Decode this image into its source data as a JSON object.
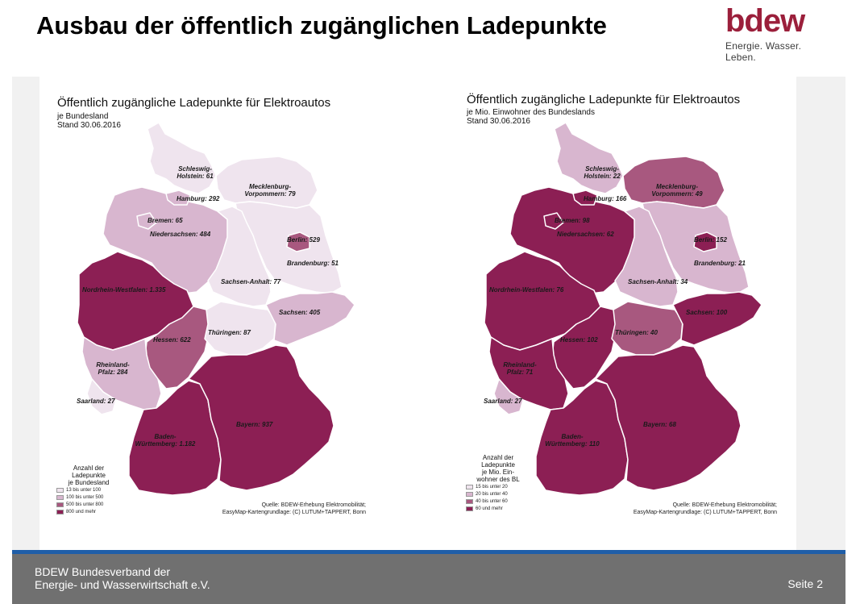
{
  "slide": {
    "title": "Ausbau der öffentlich zugänglichen Ladepunkte"
  },
  "logo": {
    "word": "bdew",
    "tagline": "Energie. Wasser. Leben."
  },
  "map_left": {
    "title": "Öffentlich zugängliche Ladepunkte für Elektroautos",
    "subtitle_line1": "je Bundesland",
    "subtitle_line2": "Stand 30.06.2016",
    "labels": {
      "sh": [
        "Schleswig-",
        "Holstein: 61"
      ],
      "mv": [
        "Mecklenburg-",
        "Vorpommern: 79"
      ],
      "hh": [
        "Hamburg: 292"
      ],
      "hb": [
        "Bremen: 65"
      ],
      "ni": [
        "Niedersachsen: 484"
      ],
      "be": [
        "Berlin: 529"
      ],
      "bb": [
        "Brandenburg: 51"
      ],
      "nw": [
        "Nordrhein-Westfalen: 1.335"
      ],
      "st": [
        "Sachsen-Anhalt: 77"
      ],
      "sn": [
        "Sachsen: 405"
      ],
      "he": [
        "Hessen: 622"
      ],
      "th": [
        "Thüringen: 87"
      ],
      "rp": [
        "Rheinland-",
        "Pfalz: 284"
      ],
      "sl": [
        "Saarland: 27"
      ],
      "by": [
        "Bayern: 937"
      ],
      "bw": [
        "Baden-",
        "Württemberg: 1.182"
      ]
    },
    "legend_title": [
      "Anzahl der",
      "Ladepunkte",
      "je Bundesland"
    ],
    "legend_items": [
      {
        "label": "13  bis unter   100",
        "color": "#efe4ee"
      },
      {
        "label": "100  bis unter   500",
        "color": "#d8b6cf"
      },
      {
        "label": "500  bis unter   800",
        "color": "#a8587f"
      },
      {
        "label": "800  und mehr",
        "color": "#8c1f54"
      }
    ],
    "source_line1": "Quelle: BDEW-Erhebung Elektromobilität;",
    "source_line2": "EasyMap-Kartengrundlage: (C) LUTUM+TAPPERT, Bonn"
  },
  "map_right": {
    "title": "Öffentlich zugängliche Ladepunkte für Elektroautos",
    "subtitle_line1": "je Mio. Einwohner des Bundeslands",
    "subtitle_line2": "Stand 30.06.2016",
    "labels": {
      "sh": [
        "Schleswig-",
        "Holstein: 22"
      ],
      "mv": [
        "Mecklenburg-",
        "Vorpommern: 49"
      ],
      "hh": [
        "Hamburg: 166"
      ],
      "hb": [
        "Bremen: 98"
      ],
      "ni": [
        "Niedersachsen: 62"
      ],
      "be": [
        "Berlin: 152"
      ],
      "bb": [
        "Brandenburg: 21"
      ],
      "nw": [
        "Nordrhein-Westfalen: 76"
      ],
      "st": [
        "Sachsen-Anhalt: 34"
      ],
      "sn": [
        "Sachsen: 100"
      ],
      "he": [
        "Hessen: 102"
      ],
      "th": [
        "Thüringen: 40"
      ],
      "rp": [
        "Rheinland-",
        "Pfalz: 71"
      ],
      "sl": [
        "Saarland: 27"
      ],
      "by": [
        "Bayern: 68"
      ],
      "bw": [
        "Baden-",
        "Württemberg: 110"
      ]
    },
    "legend_title": [
      "Anzahl der",
      "Ladepunkte",
      "je Mio. Ein-",
      "wohner des BL"
    ],
    "legend_items": [
      {
        "label": "15  bis unter   20",
        "color": "#efe4ee"
      },
      {
        "label": "20  bis unter   40",
        "color": "#d8b6cf"
      },
      {
        "label": "40  bis unter   60",
        "color": "#a8587f"
      },
      {
        "label": "60  und mehr",
        "color": "#8c1f54"
      }
    ],
    "source_line1": "Quelle: BDEW-Erhebung Elektromobilität;",
    "source_line2": "EasyMap-Kartengrundlage: (C) LUTUM+TAPPERT, Bonn"
  },
  "colors": {
    "class1": "#efe4ee",
    "class2": "#d8b6cf",
    "class3": "#a8587f",
    "class4": "#8c1f54",
    "border": "#ffffff",
    "footer_bar": "#707070",
    "footer_line": "#1f5ea8",
    "brand": "#9b1f3b"
  },
  "footer": {
    "org_line1": "BDEW Bundesverband der",
    "org_line2": "Energie- und Wasserwirtschaft e.V.",
    "page": "Seite 2"
  }
}
